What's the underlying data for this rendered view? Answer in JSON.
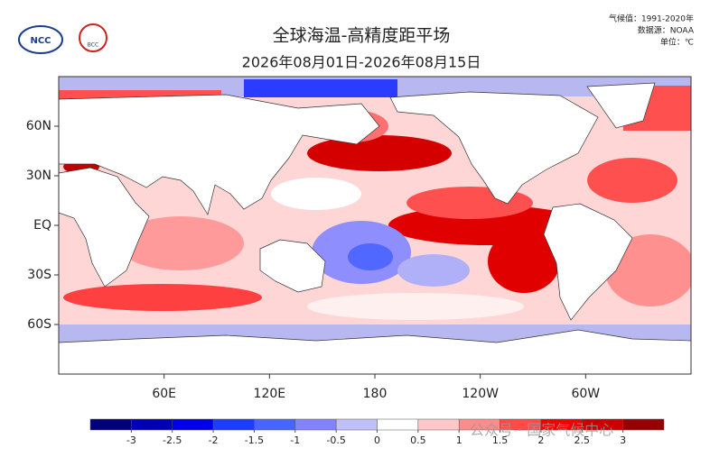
{
  "header": {
    "title": "全球海温-高精度距平场",
    "subtitle": "2026年08月01日-2026年08月15日",
    "logos": [
      "NCC",
      "BCC"
    ],
    "notes": [
      "气候值：1991-2020年",
      "数据源：NOAA",
      "单位：℃"
    ]
  },
  "map": {
    "xlim": [
      0,
      360
    ],
    "ylim": [
      -90,
      90
    ],
    "lat_ticks": [
      {
        "value": 60,
        "label": "60N"
      },
      {
        "value": 30,
        "label": "30N"
      },
      {
        "value": 0,
        "label": "EQ"
      },
      {
        "value": -30,
        "label": "30S"
      },
      {
        "value": -60,
        "label": "60S"
      }
    ],
    "lon_ticks": [
      {
        "value": 60,
        "label": "60E"
      },
      {
        "value": 120,
        "label": "120E"
      },
      180,
      {
        "value": 240,
        "label": "120W"
      },
      {
        "value": 300,
        "label": "60W"
      }
    ]
  },
  "colorbar": {
    "ticks": [
      -3,
      -2.5,
      -2,
      -1.5,
      -1,
      -0.5,
      0,
      0.5,
      1,
      1.5,
      2,
      2.5,
      3
    ],
    "colors": [
      "#00007a",
      "#0000b4",
      "#0000e6",
      "#1e3cff",
      "#4666ff",
      "#8282ff",
      "#c0c0f8",
      "#ffffff",
      "#ffc8c8",
      "#ff8c8c",
      "#ff4a4a",
      "#f00000",
      "#c80000",
      "#960000"
    ]
  },
  "watermark": "公众号 · 国家气候中心"
}
